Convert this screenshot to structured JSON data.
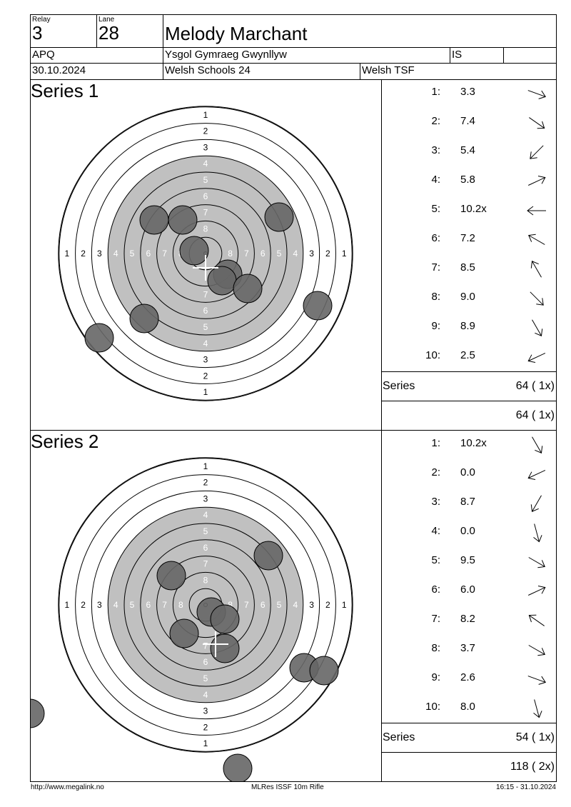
{
  "header": {
    "relay_label": "Relay",
    "relay_value": "3",
    "lane_label": "Lane",
    "lane_value": "28",
    "shooter_name": "Melody Marchant",
    "class_code": "APQ",
    "club": "Ysgol Gymraeg Gwynllyw",
    "nation": "IS",
    "extra": "",
    "date": "30.10.2024",
    "competition": "Welsh Schools 24",
    "organizer": "Welsh TSF"
  },
  "target_rings": {
    "top_labels": [
      "1",
      "2",
      "3",
      "4",
      "5",
      "6",
      "7",
      "8"
    ],
    "side_labels_left": [
      "1",
      "2",
      "3",
      "4",
      "5",
      "6",
      "7",
      "8"
    ],
    "side_labels_right": [
      "8",
      "7",
      "6",
      "5",
      "4",
      "3",
      "2",
      "1"
    ],
    "bottom_labels": [
      "7",
      "6",
      "5",
      "4",
      "3",
      "2",
      "1"
    ]
  },
  "series": [
    {
      "title": "Series 1",
      "shots": [
        {
          "no": "1:",
          "value": "3.3",
          "angle": 20
        },
        {
          "no": "2:",
          "value": "7.4",
          "angle": 35
        },
        {
          "no": "3:",
          "value": "5.4",
          "angle": 135
        },
        {
          "no": "4:",
          "value": "5.8",
          "angle": -25
        },
        {
          "no": "5:",
          "value": "10.2x",
          "angle": 180
        },
        {
          "no": "6:",
          "value": "7.2",
          "angle": -150
        },
        {
          "no": "7:",
          "value": "8.5",
          "angle": -120
        },
        {
          "no": "8:",
          "value": "9.0",
          "angle": 45
        },
        {
          "no": "9:",
          "value": "8.9",
          "angle": 60
        },
        {
          "no": "10:",
          "value": "2.5",
          "angle": 155
        }
      ],
      "impacts": [
        {
          "dx": -72,
          "dy": -47
        },
        {
          "dx": -32,
          "dy": -47
        },
        {
          "dx": 103,
          "dy": -51
        },
        {
          "dx": -16,
          "dy": -4
        },
        {
          "dx": 31,
          "dy": 29
        },
        {
          "dx": 23,
          "dy": 38
        },
        {
          "dx": 59,
          "dy": 49
        },
        {
          "dx": -86,
          "dy": 91
        },
        {
          "dx": 157,
          "dy": 73
        },
        {
          "dx": -149,
          "dy": 118
        }
      ],
      "summary_label": "Series",
      "summary_value": "64 ( 1x)",
      "total_value": "64 ( 1x)"
    },
    {
      "title": "Series 2",
      "shots": [
        {
          "no": "1:",
          "value": "10.2x",
          "angle": 60
        },
        {
          "no": "2:",
          "value": "0.0",
          "angle": 155
        },
        {
          "no": "3:",
          "value": "8.7",
          "angle": 120
        },
        {
          "no": "4:",
          "value": "0.0",
          "angle": 75
        },
        {
          "no": "5:",
          "value": "9.5",
          "angle": 30
        },
        {
          "no": "6:",
          "value": "6.0",
          "angle": -25
        },
        {
          "no": "7:",
          "value": "8.2",
          "angle": -145
        },
        {
          "no": "8:",
          "value": "3.7",
          "angle": 30
        },
        {
          "no": "9:",
          "value": "2.6",
          "angle": 20
        },
        {
          "no": "10:",
          "value": "8.0",
          "angle": 75
        }
      ],
      "impacts": [
        {
          "dx": 88,
          "dy": -69
        },
        {
          "dx": -48,
          "dy": -41
        },
        {
          "dx": 8,
          "dy": 10
        },
        {
          "dx": 27,
          "dy": 20
        },
        {
          "dx": -30,
          "dy": 40
        },
        {
          "dx": 27,
          "dy": 61
        },
        {
          "dx": 138,
          "dy": 88
        },
        {
          "dx": 166,
          "dy": 92
        },
        {
          "dx": -246,
          "dy": 152
        },
        {
          "dx": 45,
          "dy": 229
        }
      ],
      "summary_label": "Series",
      "summary_value": "54 ( 1x)",
      "total_value": "118 ( 2x)"
    }
  ],
  "footer": {
    "website": "http://www.megalink.no",
    "program": "MLRes ISSF 10m Rifle",
    "timestamp": "16:15 - 31.10.2024"
  },
  "colors": {
    "black_area": "#c0c0c0",
    "impact_fill": "#666666",
    "line": "#000000"
  }
}
